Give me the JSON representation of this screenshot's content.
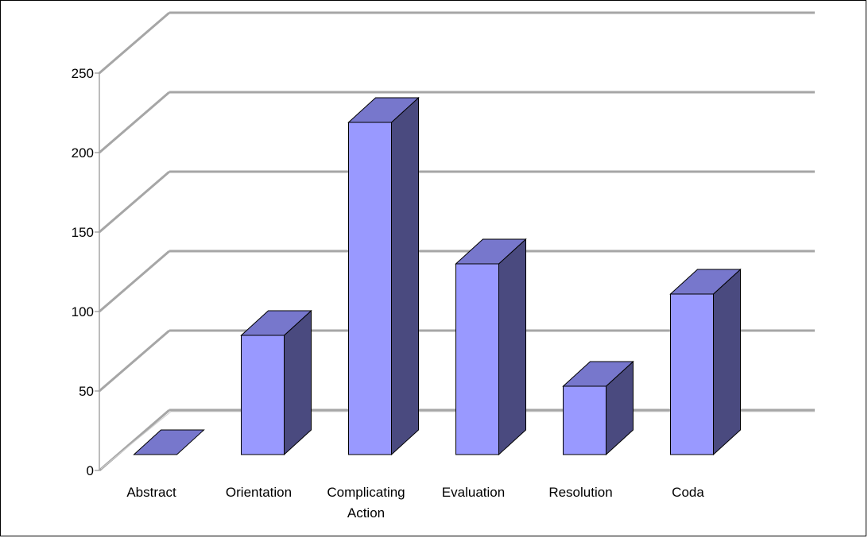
{
  "chart_data": {
    "type": "bar",
    "style": "3d-column",
    "categories": [
      "Abstract",
      "Orientation",
      "Complicating Action",
      "Evaluation",
      "Resolution",
      "Coda"
    ],
    "category_label_lines": [
      [
        "Abstract"
      ],
      [
        "Orientation"
      ],
      [
        "Complicating",
        "Action"
      ],
      [
        "Evaluation"
      ],
      [
        "Resolution"
      ],
      [
        "Coda"
      ]
    ],
    "values": [
      0,
      75,
      209,
      120,
      43,
      101
    ],
    "y_ticks": [
      0,
      50,
      100,
      150,
      200,
      250
    ],
    "ylim": [
      0,
      300
    ],
    "grid": true,
    "legend": "none",
    "colors": {
      "bar_front": "#9999ff",
      "bar_top": "#7777cc",
      "bar_side": "#4a4a7f",
      "grid": "#a6a6a6",
      "outline": "#000000"
    }
  }
}
